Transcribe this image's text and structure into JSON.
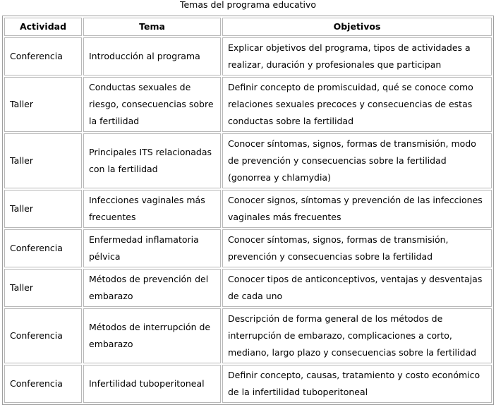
{
  "caption": "Temas del programa educativo",
  "headers": [
    "Actividad",
    "Tema",
    "Objetivos"
  ],
  "rows": [
    {
      "actividad": "Conferencia",
      "tema": "Introducción al programa",
      "objetivos": "Explicar objetivos del programa, tipos de actividades a realizar, duración y profesionales que participan"
    },
    {
      "actividad": "Taller",
      "tema": "Conductas sexuales de riesgo, consecuencias sobre la fertilidad",
      "objetivos": "Definir concepto de promiscuidad, qué se conoce como relaciones sexuales precoces y consecuencias de estas conductas sobre la fertilidad"
    },
    {
      "actividad": "Taller",
      "tema": "Principales ITS relacionadas con la fertilidad",
      "objetivos": "Conocer síntomas, signos, formas de transmisión, modo de prevención y consecuencias sobre la fertilidad (gonorrea y chlamydia)"
    },
    {
      "actividad": "Taller",
      "tema": "Infecciones vaginales más frecuentes",
      "objetivos": "Conocer signos, síntomas y prevención de las infecciones vaginales más frecuentes"
    },
    {
      "actividad": "Conferencia",
      "tema": "Enfermedad inflamatoria pélvica",
      "objetivos": "Conocer síntomas,  signos, formas de transmisión, prevención y consecuencias sobre la fertilidad"
    },
    {
      "actividad": "Taller",
      "tema": "Métodos de prevención del embarazo",
      "objetivos": "Conocer tipos de anticonceptivos, ventajas y desventajas de cada uno"
    },
    {
      "actividad": "Conferencia",
      "tema": "Métodos de interrupción de embarazo",
      "objetivos": "Descripción de forma general de los métodos de interrupción de embarazo, complicaciones a corto, mediano, largo plazo y consecuencias sobre la fertilidad"
    },
    {
      "actividad": "Conferencia",
      "tema": "Infertilidad tuboperitoneal",
      "objetivos": "Definir concepto, causas, tratamiento y costo económico de la infertilidad tuboperitoneal"
    }
  ]
}
